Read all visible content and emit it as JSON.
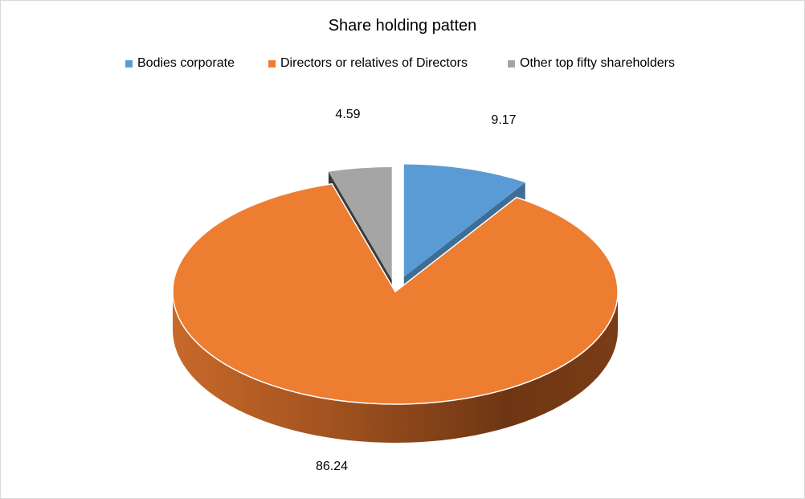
{
  "chart_data": {
    "type": "pie",
    "title": "Share holding patten",
    "categories": [
      "Bodies corporate",
      "Directors or relatives of Directors",
      "Other top fifty shareholders"
    ],
    "values": [
      9.17,
      86.24,
      4.59
    ],
    "data_labels": [
      "9.17",
      "86.24",
      "4.59"
    ],
    "colors": [
      "#5b9bd5",
      "#ed7d31",
      "#a5a5a5"
    ],
    "side_colors": [
      "#3e6e96",
      "#a85624",
      "#3a3a3a"
    ],
    "legend_position": "top",
    "style": "3d-exploded"
  }
}
